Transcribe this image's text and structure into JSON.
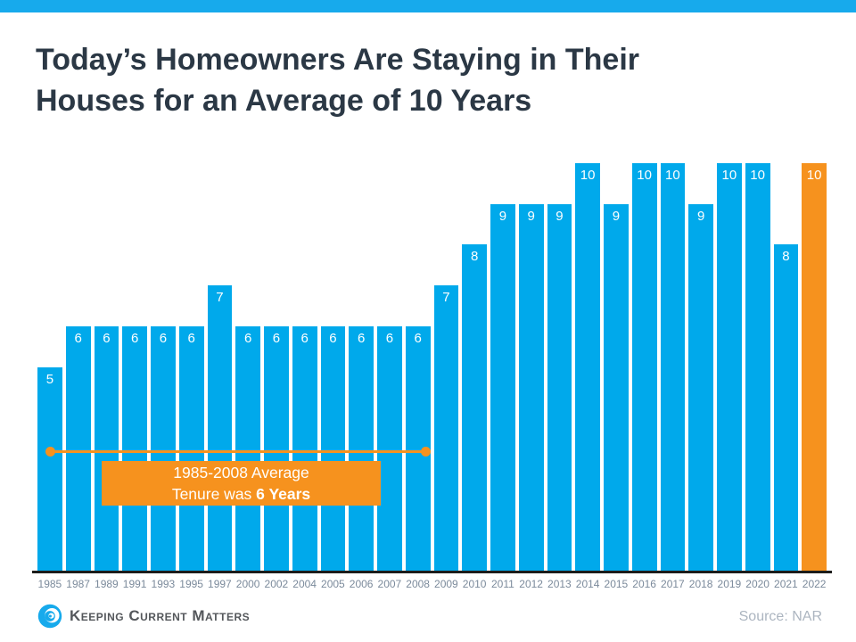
{
  "theme": {
    "accent_cyan": "#17aaec",
    "bar_cyan": "#00a9eb",
    "highlight_orange": "#f6921e",
    "title_color": "#2b3845",
    "axis_label_color": "#7b8a9b",
    "source_color": "#acb5c0"
  },
  "header": {
    "title_line1": "Today’s Homeowners Are Staying in Their",
    "title_line2": "Houses for an Average of 10 Years"
  },
  "chart_data": {
    "type": "bar",
    "title": "Today’s Homeowners Are Staying in Their Houses for an Average of 10 Years",
    "categories": [
      "1985",
      "1987",
      "1989",
      "1991",
      "1993",
      "1995",
      "1997",
      "2000",
      "2002",
      "2004",
      "2005",
      "2006",
      "2007",
      "2008",
      "2009",
      "2010",
      "2011",
      "2012",
      "2013",
      "2014",
      "2015",
      "2016",
      "2017",
      "2018",
      "2019",
      "2020",
      "2021",
      "2022"
    ],
    "values": [
      5,
      6,
      6,
      6,
      6,
      6,
      7,
      6,
      6,
      6,
      6,
      6,
      6,
      6,
      7,
      8,
      9,
      9,
      9,
      10,
      9,
      10,
      10,
      9,
      10,
      10,
      8,
      10
    ],
    "xlabel": "",
    "ylabel": "",
    "ylim": [
      0,
      10
    ],
    "grid": false,
    "legend": false,
    "bar_color": "#00a9eb",
    "highlight_color": "#f6921e",
    "highlight_index": 27,
    "value_labels_shown": true,
    "annotation": {
      "line1": "1985-2008 Average",
      "line2_prefix": "Tenure was ",
      "line2_bold": "6 Years",
      "span_start_category": "1985",
      "span_end_category": "2008"
    }
  },
  "footer": {
    "brand": "Keeping Current Matters",
    "source": "Source: NAR"
  }
}
